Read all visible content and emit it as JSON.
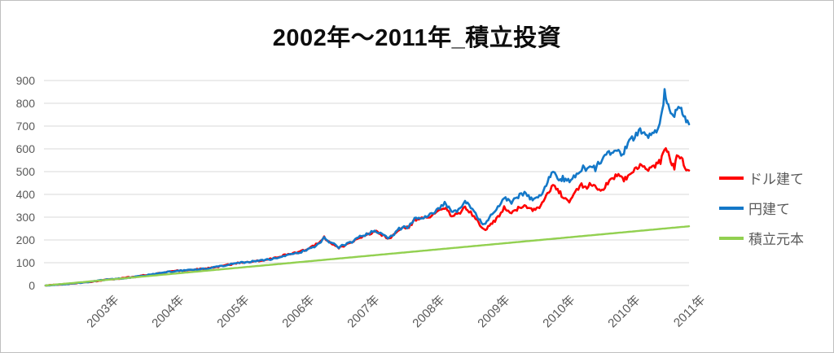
{
  "chart_data": {
    "type": "line",
    "title": "2002年～2011年_積立投資",
    "x_axis": {
      "tick_labels": [
        "2003年",
        "2004年",
        "2005年",
        "2006年",
        "2007年",
        "2008年",
        "2009年",
        "2010年",
        "2010年",
        "2011年"
      ],
      "label_rotation_deg": -45,
      "x_unit": "plot offset 0-790 spanning years 2002 to 2011",
      "x_range": [
        0,
        790
      ]
    },
    "y_axis": {
      "ticks": [
        0,
        100,
        200,
        300,
        400,
        500,
        600,
        700,
        800,
        900
      ],
      "min": 0,
      "max": 900,
      "gridlines": true,
      "gridline_color": "#dadada"
    },
    "legend": {
      "position": "right",
      "items": [
        {
          "label": "ドル建て",
          "color": "#ff0000"
        },
        {
          "label": "円建て",
          "color": "#1478c8"
        },
        {
          "label": "積立元本",
          "color": "#92d050"
        }
      ]
    },
    "series": [
      {
        "name": "ドル建て",
        "color": "#ff0000",
        "noisy": true,
        "points": [
          [
            0,
            0
          ],
          [
            15,
            4
          ],
          [
            30,
            7
          ],
          [
            40,
            11
          ],
          [
            50,
            15
          ],
          [
            60,
            18
          ],
          [
            70,
            23
          ],
          [
            80,
            28
          ],
          [
            90,
            29
          ],
          [
            100,
            35
          ],
          [
            110,
            37
          ],
          [
            120,
            44
          ],
          [
            130,
            47
          ],
          [
            140,
            55
          ],
          [
            150,
            59
          ],
          [
            160,
            64
          ],
          [
            170,
            65
          ],
          [
            180,
            70
          ],
          [
            190,
            72
          ],
          [
            200,
            76
          ],
          [
            210,
            81
          ],
          [
            220,
            89
          ],
          [
            230,
            94
          ],
          [
            240,
            101
          ],
          [
            250,
            103
          ],
          [
            260,
            108
          ],
          [
            270,
            111
          ],
          [
            280,
            120
          ],
          [
            290,
            130
          ],
          [
            300,
            138
          ],
          [
            310,
            145
          ],
          [
            318,
            155
          ],
          [
            326,
            166
          ],
          [
            334,
            185
          ],
          [
            342,
            211
          ],
          [
            348,
            190
          ],
          [
            354,
            182
          ],
          [
            360,
            165
          ],
          [
            366,
            175
          ],
          [
            372,
            182
          ],
          [
            378,
            193
          ],
          [
            384,
            208
          ],
          [
            390,
            217
          ],
          [
            396,
            225
          ],
          [
            402,
            233
          ],
          [
            406,
            235
          ],
          [
            411,
            225
          ],
          [
            416,
            216
          ],
          [
            422,
            205
          ],
          [
            428,
            222
          ],
          [
            434,
            245
          ],
          [
            440,
            252
          ],
          [
            446,
            255
          ],
          [
            453,
            287
          ],
          [
            460,
            292
          ],
          [
            466,
            298
          ],
          [
            472,
            304
          ],
          [
            478,
            315
          ],
          [
            484,
            326
          ],
          [
            490,
            340
          ],
          [
            495,
            322
          ],
          [
            497,
            312
          ],
          [
            500,
            302
          ],
          [
            505,
            312
          ],
          [
            511,
            328
          ],
          [
            515,
            342
          ],
          [
            518,
            336
          ],
          [
            524,
            312
          ],
          [
            530,
            285
          ],
          [
            535,
            260
          ],
          [
            540,
            248
          ],
          [
            545,
            262
          ],
          [
            550,
            280
          ],
          [
            557,
            305
          ],
          [
            563,
            340
          ],
          [
            568,
            330
          ],
          [
            572,
            318
          ],
          [
            577,
            330
          ],
          [
            582,
            342
          ],
          [
            588,
            355
          ],
          [
            593,
            340
          ],
          [
            598,
            328
          ],
          [
            603,
            336
          ],
          [
            608,
            350
          ],
          [
            613,
            378
          ],
          [
            618,
            415
          ],
          [
            623,
            440
          ],
          [
            627,
            428
          ],
          [
            632,
            405
          ],
          [
            635,
            386
          ],
          [
            640,
            375
          ],
          [
            643,
            369
          ],
          [
            650,
            411
          ],
          [
            658,
            440
          ],
          [
            663,
            429
          ],
          [
            668,
            446
          ],
          [
            673,
            436
          ],
          [
            678,
            418
          ],
          [
            685,
            423
          ],
          [
            692,
            458
          ],
          [
            698,
            476
          ],
          [
            705,
            482
          ],
          [
            710,
            464
          ],
          [
            715,
            476
          ],
          [
            720,
            493
          ],
          [
            725,
            512
          ],
          [
            730,
            525
          ],
          [
            735,
            517
          ],
          [
            740,
            507
          ],
          [
            745,
            525
          ],
          [
            750,
            529
          ],
          [
            755,
            545
          ],
          [
            758,
            580
          ],
          [
            760,
            607
          ],
          [
            763,
            590
          ],
          [
            766,
            570
          ],
          [
            769,
            535
          ],
          [
            772,
            520
          ],
          [
            775,
            560
          ],
          [
            779,
            564
          ],
          [
            782,
            548
          ],
          [
            785,
            518
          ],
          [
            788,
            508
          ],
          [
            790,
            505
          ]
        ]
      },
      {
        "name": "円建て",
        "color": "#1478c8",
        "noisy": true,
        "points": [
          [
            0,
            0
          ],
          [
            15,
            4
          ],
          [
            30,
            8
          ],
          [
            40,
            11
          ],
          [
            50,
            14
          ],
          [
            60,
            19
          ],
          [
            70,
            24
          ],
          [
            80,
            27
          ],
          [
            90,
            30
          ],
          [
            100,
            34
          ],
          [
            110,
            38
          ],
          [
            120,
            43
          ],
          [
            130,
            48
          ],
          [
            140,
            54
          ],
          [
            150,
            60
          ],
          [
            160,
            63
          ],
          [
            170,
            66
          ],
          [
            180,
            69
          ],
          [
            190,
            71
          ],
          [
            200,
            75
          ],
          [
            210,
            82
          ],
          [
            220,
            88
          ],
          [
            230,
            95
          ],
          [
            240,
            100
          ],
          [
            250,
            104
          ],
          [
            260,
            107
          ],
          [
            270,
            112
          ],
          [
            280,
            118
          ],
          [
            290,
            128
          ],
          [
            300,
            136
          ],
          [
            310,
            143
          ],
          [
            318,
            152
          ],
          [
            326,
            162
          ],
          [
            334,
            180
          ],
          [
            342,
            208
          ],
          [
            348,
            192
          ],
          [
            354,
            185
          ],
          [
            360,
            168
          ],
          [
            366,
            178
          ],
          [
            372,
            185
          ],
          [
            378,
            196
          ],
          [
            384,
            210
          ],
          [
            390,
            220
          ],
          [
            396,
            228
          ],
          [
            402,
            236
          ],
          [
            406,
            238
          ],
          [
            411,
            228
          ],
          [
            416,
            220
          ],
          [
            422,
            208
          ],
          [
            428,
            225
          ],
          [
            434,
            248
          ],
          [
            440,
            255
          ],
          [
            446,
            258
          ],
          [
            453,
            290
          ],
          [
            460,
            295
          ],
          [
            466,
            302
          ],
          [
            472,
            310
          ],
          [
            478,
            322
          ],
          [
            484,
            340
          ],
          [
            490,
            365
          ],
          [
            495,
            340
          ],
          [
            497,
            333
          ],
          [
            500,
            320
          ],
          [
            505,
            330
          ],
          [
            511,
            345
          ],
          [
            515,
            364
          ],
          [
            518,
            358
          ],
          [
            524,
            330
          ],
          [
            530,
            304
          ],
          [
            535,
            278
          ],
          [
            540,
            268
          ],
          [
            545,
            300
          ],
          [
            550,
            320
          ],
          [
            557,
            352
          ],
          [
            563,
            387
          ],
          [
            568,
            375
          ],
          [
            572,
            364
          ],
          [
            577,
            380
          ],
          [
            582,
            395
          ],
          [
            588,
            404
          ],
          [
            593,
            390
          ],
          [
            598,
            375
          ],
          [
            603,
            385
          ],
          [
            608,
            400
          ],
          [
            613,
            430
          ],
          [
            618,
            470
          ],
          [
            623,
            506
          ],
          [
            627,
            485
          ],
          [
            632,
            464
          ],
          [
            635,
            471
          ],
          [
            640,
            460
          ],
          [
            645,
            458
          ],
          [
            652,
            493
          ],
          [
            660,
            518
          ],
          [
            665,
            507
          ],
          [
            670,
            525
          ],
          [
            675,
            512
          ],
          [
            680,
            542
          ],
          [
            685,
            560
          ],
          [
            690,
            578
          ],
          [
            695,
            589
          ],
          [
            700,
            600
          ],
          [
            705,
            578
          ],
          [
            710,
            589
          ],
          [
            715,
            619
          ],
          [
            720,
            643
          ],
          [
            725,
            661
          ],
          [
            730,
            679
          ],
          [
            735,
            667
          ],
          [
            740,
            650
          ],
          [
            745,
            672
          ],
          [
            750,
            686
          ],
          [
            754,
            696
          ],
          [
            757,
            760
          ],
          [
            760,
            845
          ],
          [
            763,
            815
          ],
          [
            766,
            790
          ],
          [
            769,
            745
          ],
          [
            772,
            735
          ],
          [
            775,
            779
          ],
          [
            779,
            786
          ],
          [
            782,
            765
          ],
          [
            785,
            739
          ],
          [
            788,
            725
          ],
          [
            790,
            708
          ]
        ]
      },
      {
        "name": "積立元本",
        "color": "#92d050",
        "noisy": false,
        "points": [
          [
            0,
            0
          ],
          [
            790,
            260
          ]
        ]
      }
    ]
  },
  "style": {
    "title_color": "#0d0d0d",
    "tick_color": "#595959",
    "gridline_color": "#dadada",
    "background": "#ffffff",
    "border_color": "#bfbfbf"
  }
}
